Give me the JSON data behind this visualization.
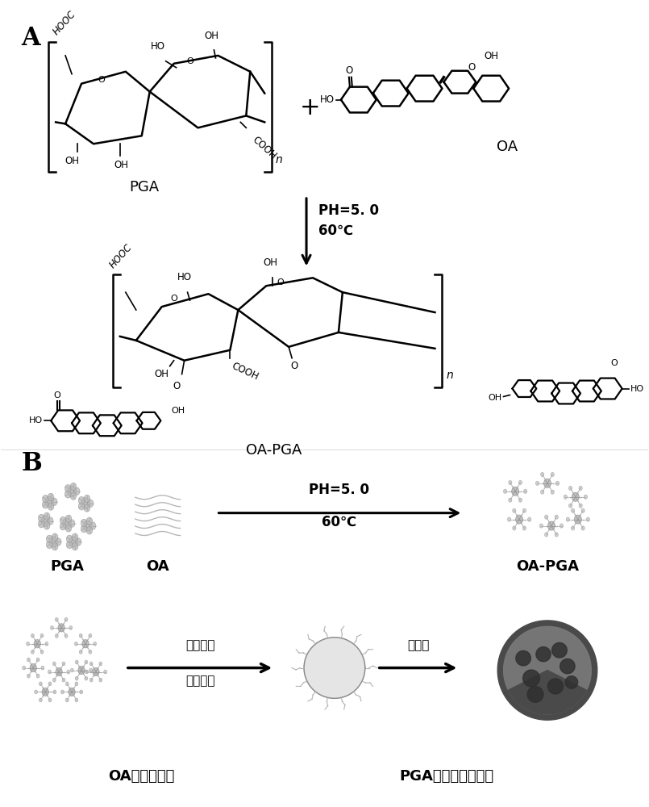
{
  "background_color": "#ffffff",
  "label_A": "A",
  "label_B": "B",
  "label_PGA_top": "PGA",
  "label_OA_top": "OA",
  "label_OAPGA_mid": "OA-PGA",
  "label_PH1": "PH=5. 0",
  "label_60C1": "60℃",
  "label_PH2": "PH=5. 0",
  "label_60C2": "60℃",
  "label_PGA_B": "PGA",
  "label_OA_B": "OA",
  "label_OAPGA_B": "OA-PGA",
  "label_jiaohua": "氮氧化馒",
  "label_tansuanqingna": "碳酸氢钓",
  "label_zizoazhuang": "自组装",
  "label_bottom_OA": "OA：齐崂果酸",
  "label_bottom_PGA": "PGA：聚半乳糖醉酸",
  "fig_width": 8.05,
  "fig_height": 10.0,
  "dpi": 100
}
